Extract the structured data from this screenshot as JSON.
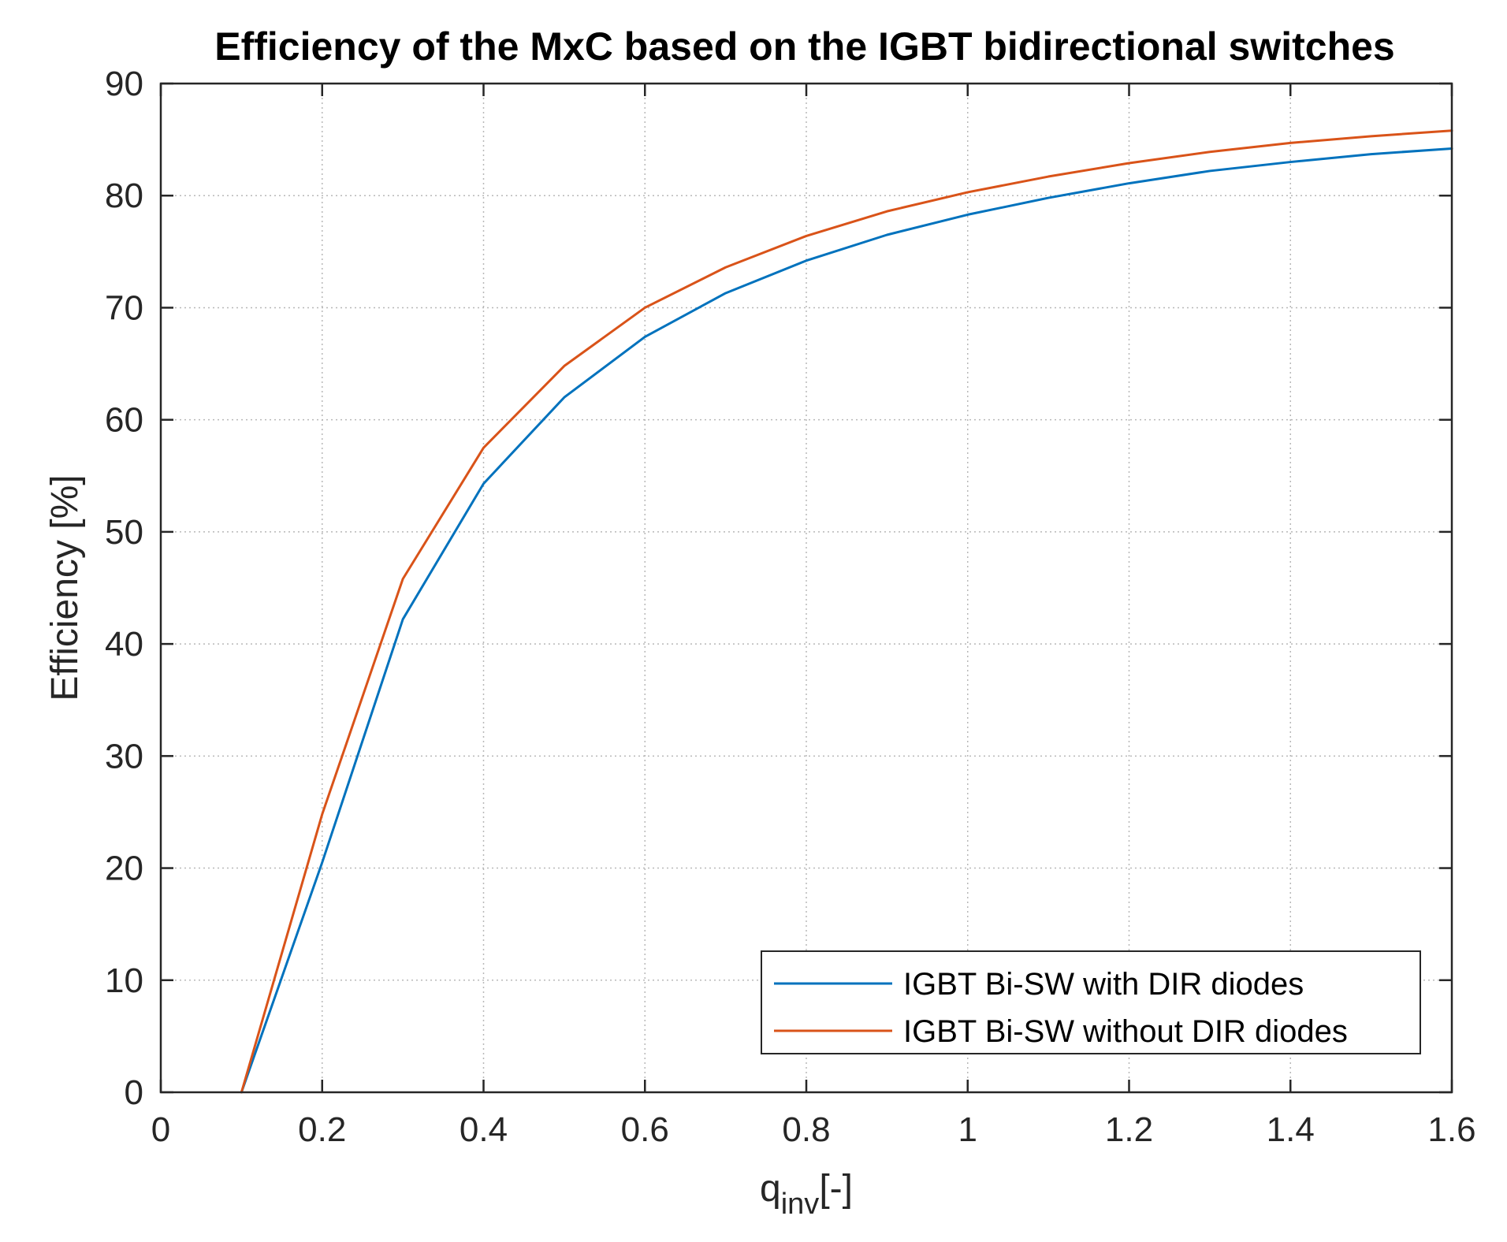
{
  "chart_data": {
    "type": "line",
    "title": "Efficiency of the MxC based on the IGBT bidirectional switches",
    "xlabel": {
      "main": "q",
      "subscript": "inv",
      "suffix": "[-]"
    },
    "ylabel": "Efficiency [%]",
    "xlim": [
      0,
      1.6
    ],
    "ylim": [
      0,
      90
    ],
    "x_ticks": [
      0,
      0.2,
      0.4,
      0.6,
      0.8,
      1.0,
      1.2,
      1.4,
      1.6
    ],
    "x_tick_labels": [
      "0",
      "0.2",
      "0.4",
      "0.6",
      "0.8",
      "1",
      "1.2",
      "1.4",
      "1.6"
    ],
    "y_ticks": [
      0,
      10,
      20,
      30,
      40,
      50,
      60,
      70,
      80,
      90
    ],
    "y_tick_labels": [
      "0",
      "10",
      "20",
      "30",
      "40",
      "50",
      "60",
      "70",
      "80",
      "90"
    ],
    "legend_position": "bottom-right",
    "series": [
      {
        "name": "IGBT Bi-SW with DIR diodes",
        "color": "#0072BD",
        "x": [
          0.1,
          0.2,
          0.3,
          0.4,
          0.5,
          0.6,
          0.7,
          0.8,
          0.9,
          1.0,
          1.1,
          1.2,
          1.3,
          1.4,
          1.5,
          1.6
        ],
        "y": [
          0,
          20.5,
          42.2,
          54.3,
          62.0,
          67.4,
          71.3,
          74.2,
          76.5,
          78.3,
          79.8,
          81.1,
          82.2,
          83.0,
          83.7,
          84.2
        ]
      },
      {
        "name": "IGBT Bi-SW without DIR diodes",
        "color": "#D95319",
        "x": [
          0.1,
          0.2,
          0.3,
          0.4,
          0.5,
          0.6,
          0.7,
          0.8,
          0.9,
          1.0,
          1.1,
          1.2,
          1.3,
          1.4,
          1.5,
          1.6
        ],
        "y": [
          0,
          24.8,
          45.8,
          57.5,
          64.8,
          70.0,
          73.6,
          76.4,
          78.6,
          80.3,
          81.7,
          82.9,
          83.9,
          84.7,
          85.3,
          85.8
        ]
      }
    ]
  }
}
